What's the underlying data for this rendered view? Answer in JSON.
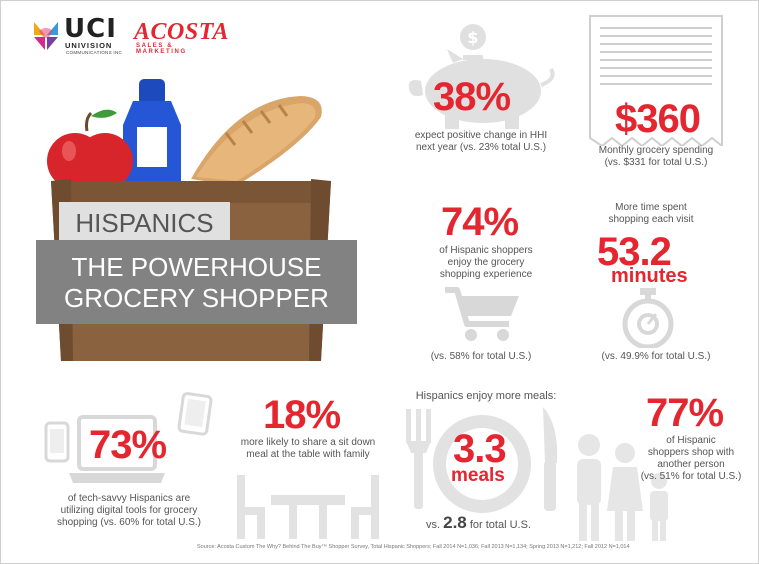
{
  "logos": {
    "uci": {
      "word": "UCI",
      "line1": "UNIVISION",
      "line2": "COMMUNICATIONS INC"
    },
    "acosta": {
      "word": "ACOSTA",
      "tagline": "SALES & MARKETING"
    }
  },
  "hero": {
    "title_top": "HISPANICS",
    "title_line1": "THE POWERHOUSE",
    "title_line2": "GROCERY SHOPPER"
  },
  "stats": {
    "hhi": {
      "value": "38%",
      "line1": "expect positive change in HHI",
      "line2": "next year (vs. 23% total U.S.)"
    },
    "spending": {
      "value": "$360",
      "line1": "Monthly grocery spending",
      "line2": "(vs. $331 for total U.S.)"
    },
    "enjoy": {
      "value": "74%",
      "line1": "of Hispanic shoppers",
      "line2": "enjoy the grocery",
      "line3": "shopping experience",
      "compare": "(vs. 58% for total U.S.)"
    },
    "time": {
      "line1": "More time spent",
      "line2": "shopping each visit",
      "value": "53.2",
      "unit": "minutes",
      "compare": "(vs. 49.9% for total U.S.)"
    },
    "digital": {
      "value": "73%",
      "line1": "of tech-savvy Hispanics are",
      "line2": "utilizing digital tools for grocery",
      "line3": "shopping (vs. 60% for total U.S.)"
    },
    "meal_share": {
      "value": "18%",
      "line1": "more likely to share a sit down",
      "line2": "meal at the table with family"
    },
    "meals": {
      "heading": "Hispanics enjoy more meals:",
      "value": "3.3",
      "unit": "meals",
      "compare_pre": "vs.",
      "compare_value": "2.8",
      "compare_post": "for total U.S."
    },
    "companion": {
      "value": "77%",
      "line1": "of Hispanic",
      "line2": "shoppers shop with",
      "line3": "another person",
      "line4": "(vs. 51% for total U.S.)"
    }
  },
  "source": "Source: Acosta Custom The Why? Behind The Buy™ Shopper Survey, Total Hispanic Shoppers; Fall 2014 N=1,036; Fall 2013 N=1,134; Spring 2013 N=1,212; Fall 2012 N=1,014",
  "colors": {
    "accent": "#e3262f",
    "icon_gray": "#dcdcdc",
    "banner": "#828282",
    "bag": "#8a6240"
  },
  "icons": [
    "uci-logo-icon",
    "piggy-bank-icon",
    "receipt-icon",
    "shopping-cart-icon",
    "stopwatch-icon",
    "laptop-icon",
    "phone-icon",
    "tablet-icon",
    "table-chairs-icon",
    "fork-icon",
    "plate-icon",
    "knife-icon",
    "family-icon",
    "grocery-bag-icon",
    "apple-icon",
    "milk-bottle-icon",
    "bread-icon"
  ]
}
